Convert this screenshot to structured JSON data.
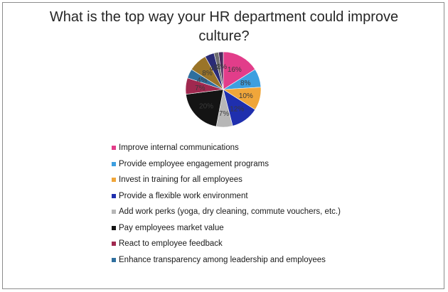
{
  "chart_data": {
    "type": "pie",
    "title": "What is the top way your HR department could improve culture?",
    "slices": [
      {
        "label": "Improve internal communications",
        "value": 16,
        "value_label": "16%",
        "color": "#e23d8a"
      },
      {
        "label": "Provide employee engagement programs",
        "value": 8,
        "value_label": "8%",
        "color": "#3d9fe0"
      },
      {
        "label": "Invest in training for all employees",
        "value": 10,
        "value_label": "10%",
        "color": "#f0a63a"
      },
      {
        "label": "Provide a flexible work environment",
        "value": 12,
        "value_label": "12%",
        "color": "#1f2fae"
      },
      {
        "label": "Add work perks (yoga, dry cleaning, commute vouchers, etc.)",
        "value": 7,
        "value_label": "7%",
        "color": "#b7b7b7"
      },
      {
        "label": "Pay employees market value",
        "value": 20,
        "value_label": "20%",
        "color": "#141414"
      },
      {
        "label": "React to employee feedback",
        "value": 7,
        "value_label": "7%",
        "color": "#a0284f"
      },
      {
        "label": "Enhance transparency among leadership and employees",
        "value": 4,
        "value_label": "4%",
        "color": "#2f6f9e"
      },
      {
        "label": "",
        "value": 8,
        "value_label": "8%",
        "color": "#9a7428"
      },
      {
        "label": "",
        "value": 4,
        "value_label": "4%",
        "color": "#2a2b77"
      },
      {
        "label": "",
        "value": 2,
        "value_label": "2%",
        "color": "#6e6e6e"
      },
      {
        "label": "",
        "value": 2,
        "value_label": "2%",
        "color": "#4a2a5e"
      }
    ],
    "legend": [
      {
        "label": "Improve internal communications",
        "color": "#e23d8a"
      },
      {
        "label": "Provide employee engagement programs",
        "color": "#3d9fe0"
      },
      {
        "label": "Invest in training for all employees",
        "color": "#f0a63a"
      },
      {
        "label": "Provide a flexible work environment",
        "color": "#1f2fae"
      },
      {
        "label": "Add work perks (yoga, dry cleaning, commute vouchers, etc.)",
        "color": "#b7b7b7"
      },
      {
        "label": "Pay employees market value",
        "color": "#141414"
      },
      {
        "label": "React to employee feedback",
        "color": "#a0284f"
      },
      {
        "label": "Enhance transparency among leadership and employees",
        "color": "#2f6f9e"
      }
    ],
    "legend_position": "bottom"
  }
}
